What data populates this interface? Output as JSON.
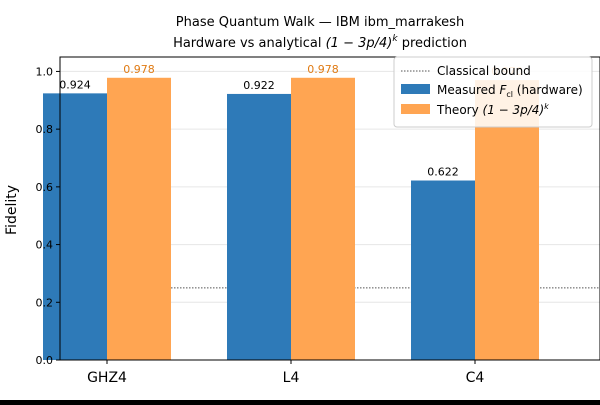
{
  "chart_data": {
    "type": "bar",
    "title_line1": "Phase Quantum Walk — IBM ibm_marrakesh",
    "title_line2_pre": "Hardware vs analytical ",
    "title_line2_math": "(1 − 3p/4)",
    "title_line2_sup": "k",
    "title_line2_post": " prediction",
    "xlabel": "",
    "ylabel": "Fidelity",
    "ylim": [
      0.0,
      1.05
    ],
    "yticks": [
      "0.0",
      "0.2",
      "0.4",
      "0.6",
      "0.8",
      "1.0"
    ],
    "grid": "horizontal",
    "categories": [
      "GHZ4",
      "L4",
      "C4"
    ],
    "classical_bound": 0.25,
    "series": [
      {
        "name": "Measured F_cl (hardware)",
        "legend_pre": "Measured ",
        "legend_math": "F",
        "legend_sub": "cl",
        "legend_post": " (hardware)",
        "values": [
          0.924,
          0.922,
          0.622
        ],
        "labels": [
          "0.924",
          "0.922",
          "0.622"
        ],
        "color": "#2e7ab8",
        "label_color": "#000000"
      },
      {
        "name": "Theory (1 − 3p/4)^k",
        "legend_pre": "Theory ",
        "legend_math": "(1 − 3p/4)",
        "legend_sup": "k",
        "values": [
          0.978,
          0.978,
          0.97
        ],
        "labels": [
          "0.978",
          "0.978",
          "0.970"
        ],
        "color": "#ffa552",
        "label_color": "#e07b14"
      }
    ],
    "legend": {
      "placement": "top-right",
      "bound_label": "Classical bound"
    }
  }
}
